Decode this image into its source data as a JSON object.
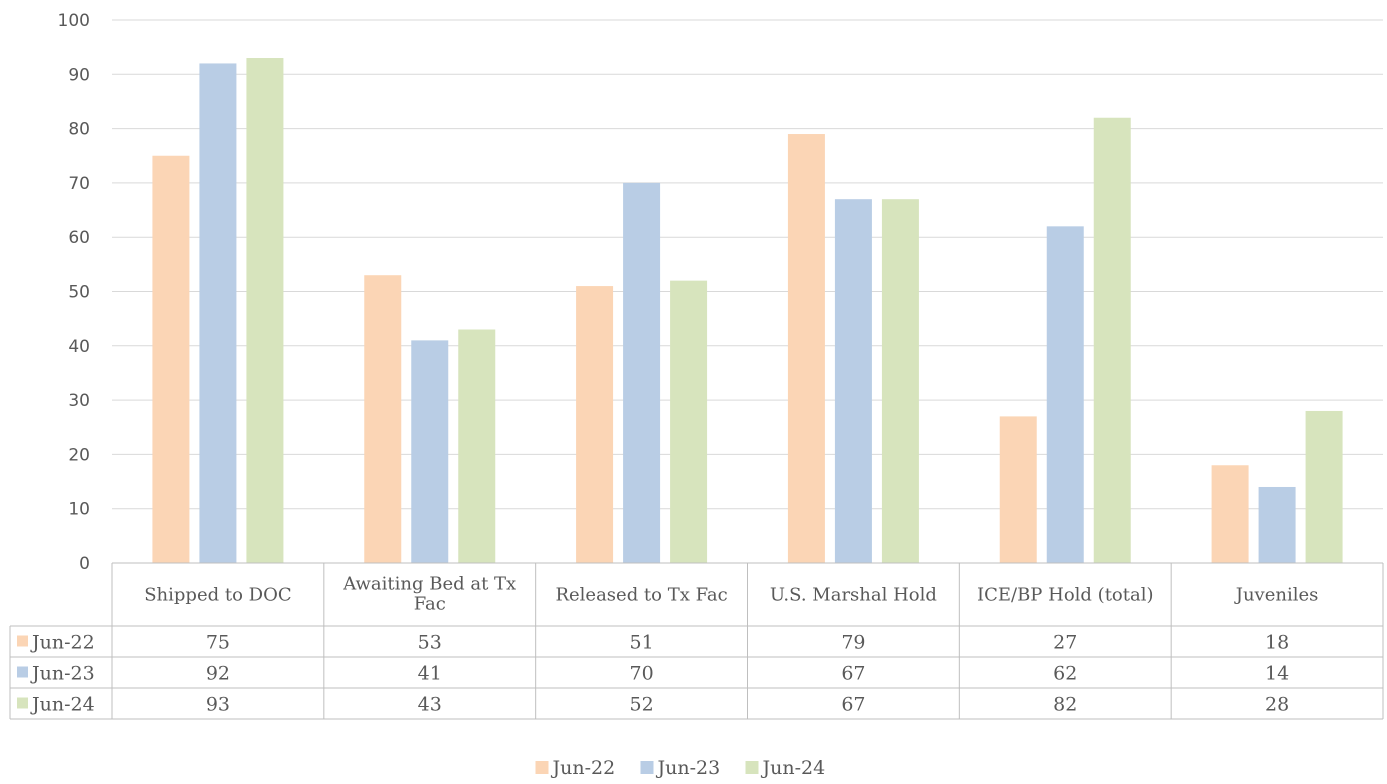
{
  "chart_data": {
    "type": "bar",
    "categories": [
      "Shipped to DOC",
      "Awaiting Bed at Tx Fac",
      "Released to Tx Fac",
      "U.S. Marshal Hold",
      "ICE/BP Hold (total)",
      "Juveniles"
    ],
    "series": [
      {
        "name": "Jun-22",
        "values": [
          75,
          53,
          51,
          79,
          27,
          18
        ],
        "color": "#fbd5b5"
      },
      {
        "name": "Jun-23",
        "values": [
          92,
          41,
          70,
          67,
          62,
          14
        ],
        "color": "#b9cde5"
      },
      {
        "name": "Jun-24",
        "values": [
          93,
          43,
          52,
          67,
          82,
          28
        ],
        "color": "#d7e4bd"
      }
    ],
    "ylim": [
      0,
      100
    ],
    "yticks": [
      0,
      10,
      20,
      30,
      40,
      50,
      60,
      70,
      80,
      90,
      100
    ],
    "grid": true,
    "data_table": true,
    "legend": "bottom-center"
  }
}
